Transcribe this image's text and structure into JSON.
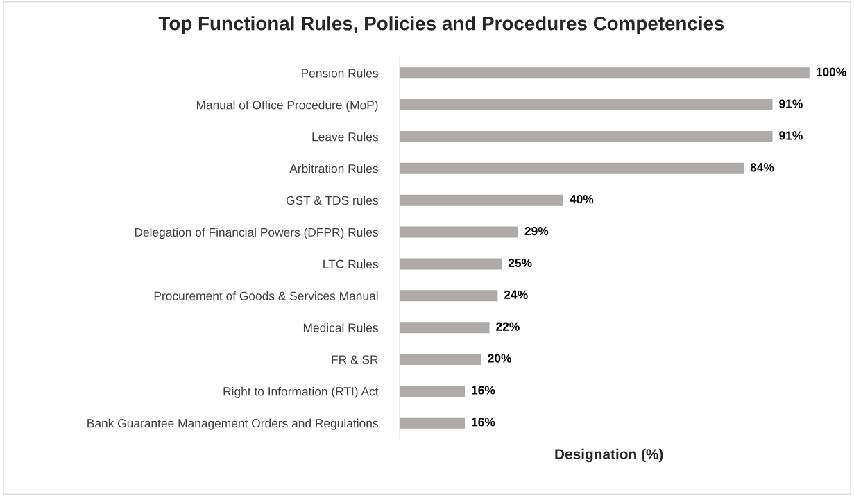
{
  "chart_data": {
    "type": "bar",
    "orientation": "horizontal",
    "title": "Top Functional Rules, Policies and Procedures Competencies",
    "xlabel": "Designation (%)",
    "categories": [
      "Pension Rules",
      "Manual of Office Procedure (MoP)",
      "Leave Rules",
      "Arbitration Rules",
      "GST & TDS rules",
      "Delegation of Financial Powers (DFPR) Rules",
      "LTC Rules",
      "Procurement of Goods & Services Manual",
      "Medical Rules",
      "FR & SR",
      "Right to Information (RTI) Act",
      "Bank Guarantee Management Orders and Regulations"
    ],
    "values": [
      100,
      91,
      91,
      84,
      40,
      29,
      25,
      24,
      22,
      20,
      16,
      16
    ],
    "value_labels": [
      "100%",
      "91%",
      "91%",
      "84%",
      "40%",
      "29%",
      "25%",
      "24%",
      "22%",
      "20%",
      "16%",
      "16%"
    ],
    "color": "#aeaaaa",
    "grid": false,
    "legend": false
  }
}
